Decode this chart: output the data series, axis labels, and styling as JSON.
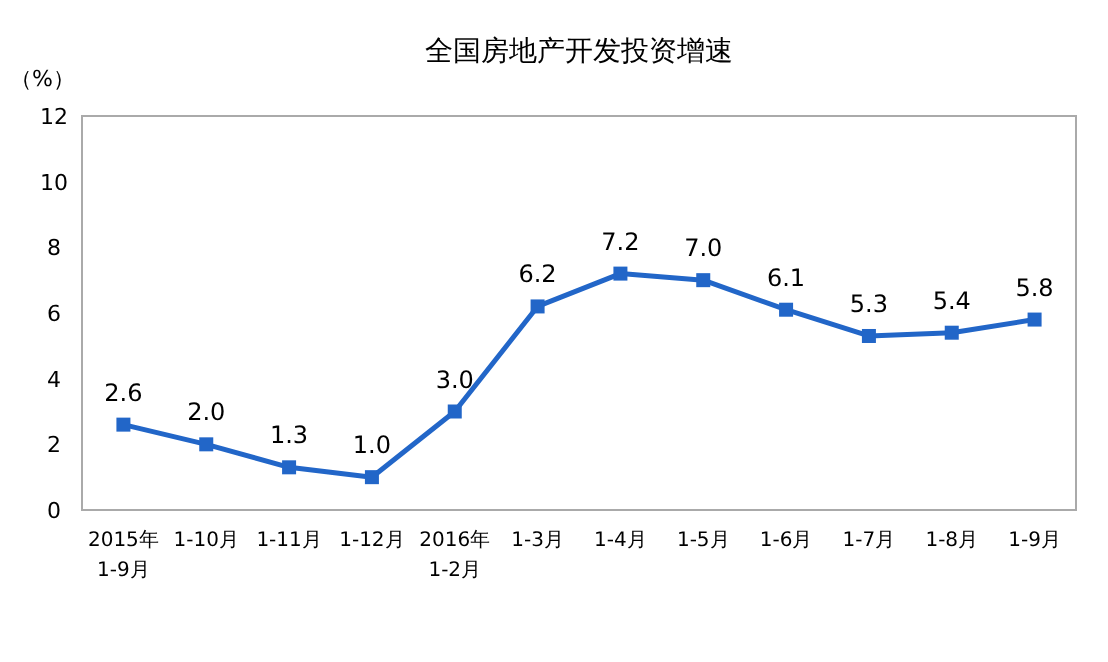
{
  "chart_data": {
    "type": "line",
    "title": "全国房地产开发投资增速",
    "ylabel": "（%）",
    "categories": [
      "2015年\n1-9月",
      "1-10月",
      "1-11月",
      "1-12月",
      "2016年\n1-2月",
      "1-3月",
      "1-4月",
      "1-5月",
      "1-6月",
      "1-7月",
      "1-8月",
      "1-9月"
    ],
    "series": [
      {
        "color": "#2266c8",
        "values": [
          2.6,
          2.0,
          1.3,
          1.0,
          3.0,
          6.2,
          7.2,
          7.0,
          6.1,
          5.3,
          5.4,
          5.8
        ],
        "value_labels": [
          "2.6",
          "2.0",
          "1.3",
          "1.0",
          "3.0",
          "6.2",
          "7.2",
          "7.0",
          "6.1",
          "5.3",
          "5.4",
          "5.8"
        ]
      }
    ],
    "ylim": [
      0,
      12
    ],
    "yticks": [
      0,
      2,
      4,
      6,
      8,
      10,
      12
    ],
    "marker": "square",
    "grid": false
  }
}
